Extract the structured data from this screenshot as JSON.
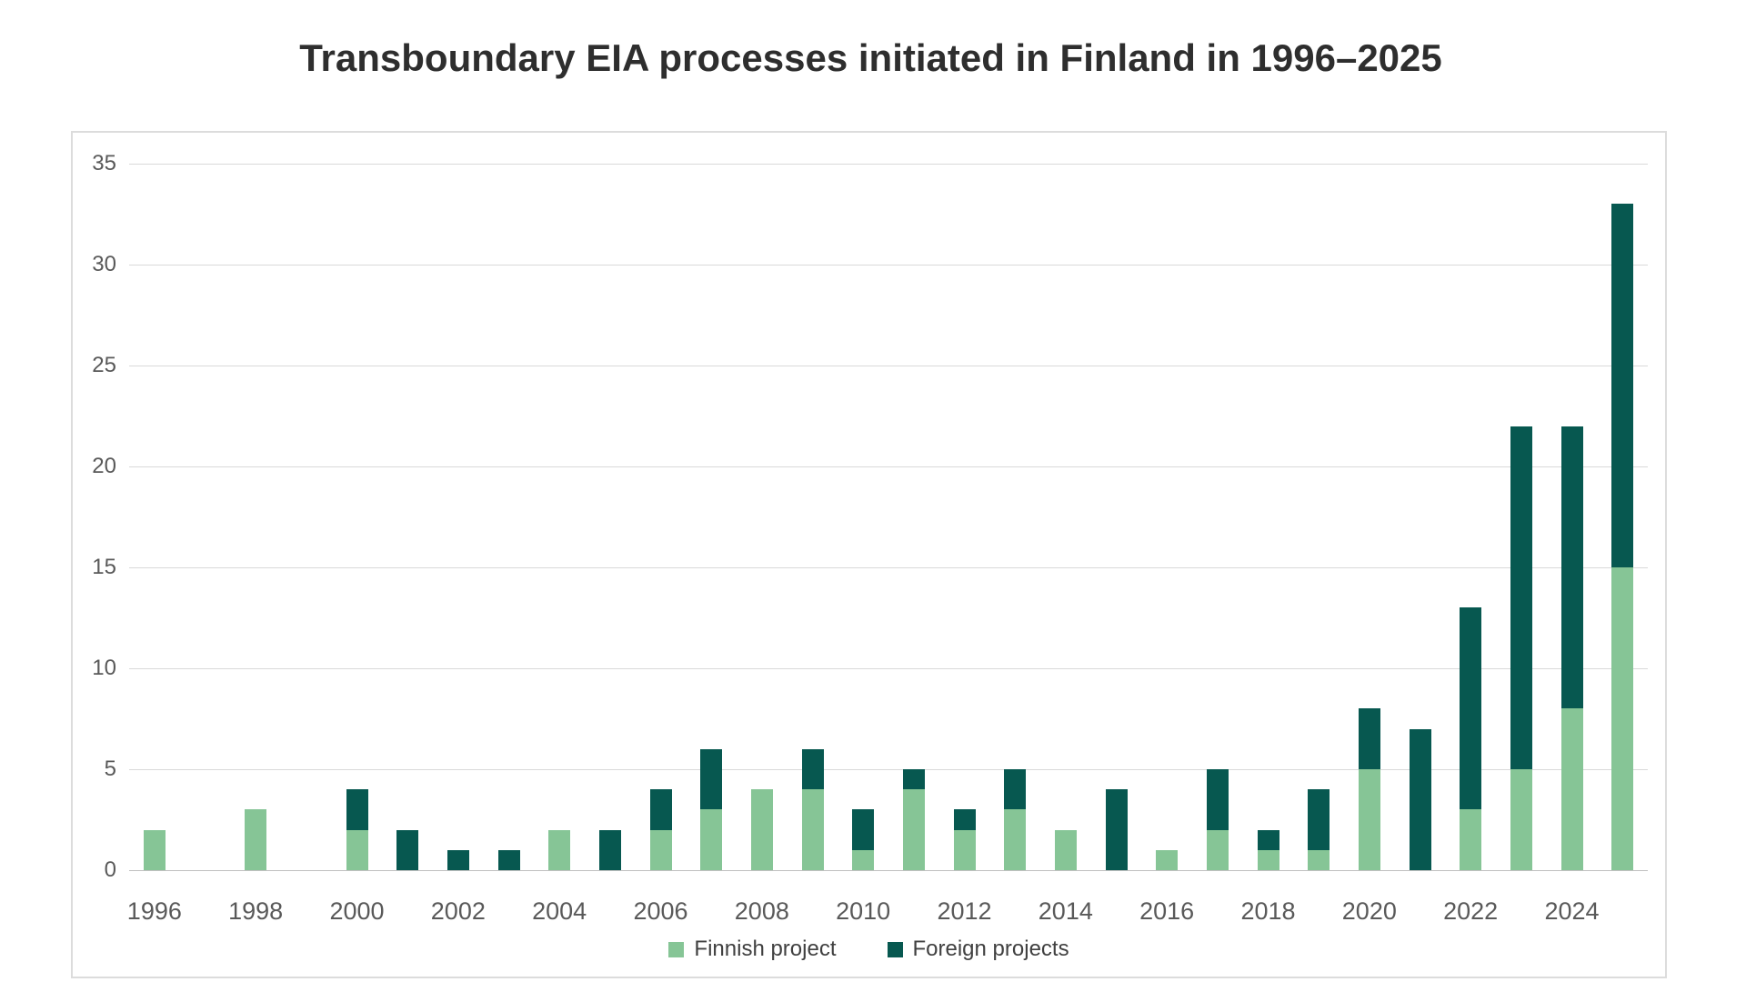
{
  "title": "Transboundary EIA processes initiated in Finland in 1996–2025",
  "legend": {
    "items": [
      {
        "label": "Finnish project",
        "color": "#86c596"
      },
      {
        "label": "Foreign projects",
        "color": "#075850"
      }
    ]
  },
  "chart_data": {
    "type": "bar",
    "stacked": true,
    "title": "Transboundary EIA processes initiated in Finland in 1996–2025",
    "xlabel": "",
    "ylabel": "",
    "ylim": [
      0,
      35
    ],
    "y_ticks": [
      0,
      5,
      10,
      15,
      20,
      25,
      30,
      35
    ],
    "grid": true,
    "legend_position": "bottom",
    "categories": [
      "1996",
      "1997",
      "1998",
      "1999",
      "2000",
      "2001",
      "2002",
      "2003",
      "2004",
      "2005",
      "2006",
      "2007",
      "2008",
      "2009",
      "2010",
      "2011",
      "2012",
      "2013",
      "2014",
      "2015",
      "2016",
      "2017",
      "2018",
      "2019",
      "2020",
      "2021",
      "2022",
      "2023",
      "2024",
      "2025"
    ],
    "x_tick_labels": [
      "1996",
      "1998",
      "2000",
      "2002",
      "2004",
      "2006",
      "2008",
      "2010",
      "2012",
      "2014",
      "2016",
      "2018",
      "2020",
      "2022",
      "2024"
    ],
    "series": [
      {
        "name": "Finnish project",
        "color": "#86c596",
        "values": [
          2,
          0,
          3,
          0,
          2,
          0,
          0,
          0,
          2,
          0,
          2,
          3,
          4,
          4,
          1,
          4,
          2,
          3,
          2,
          0,
          1,
          2,
          1,
          1,
          5,
          0,
          3,
          5,
          8,
          15
        ]
      },
      {
        "name": "Foreign projects",
        "color": "#075850",
        "values": [
          0,
          0,
          0,
          0,
          2,
          2,
          1,
          1,
          0,
          2,
          2,
          3,
          0,
          2,
          2,
          1,
          1,
          2,
          0,
          4,
          0,
          3,
          1,
          3,
          3,
          7,
          10,
          17,
          14,
          18
        ]
      }
    ],
    "colors": {
      "gridline": "#d9d9d9",
      "axis_line": "#c0c0c0",
      "tick_label": "#595959",
      "title_text": "#2e2e2e",
      "legend_text": "#404040",
      "chart_border": "#dcdcdc",
      "background": "#ffffff"
    }
  }
}
